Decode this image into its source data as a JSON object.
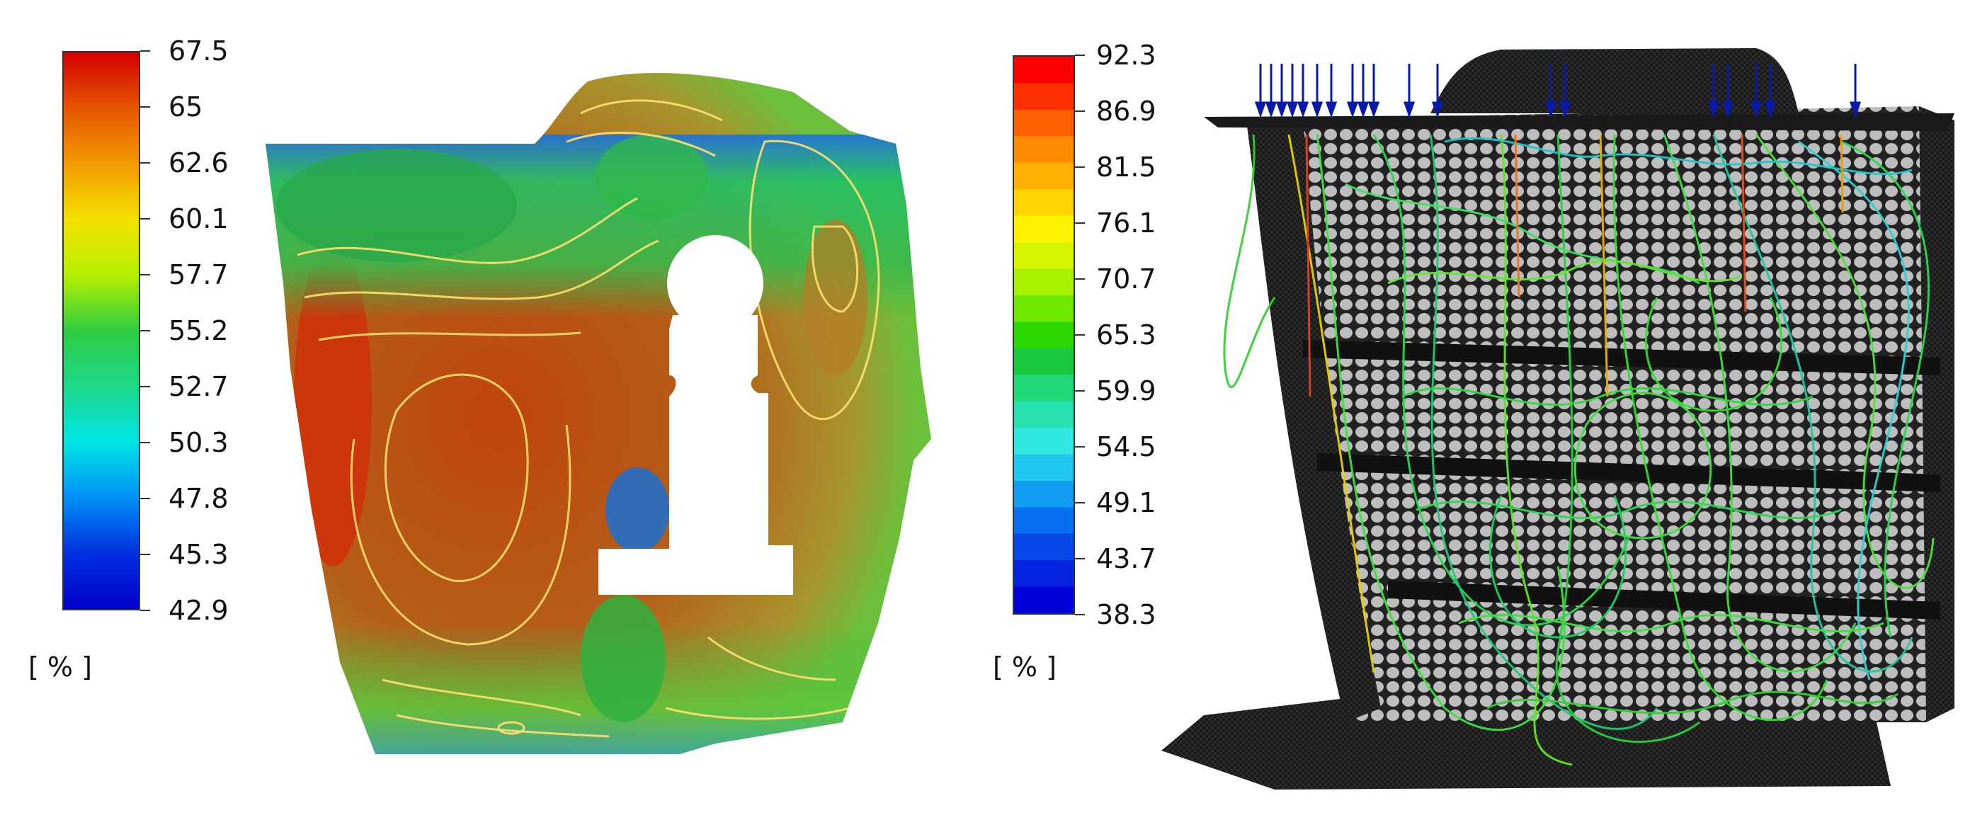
{
  "left_panel": {
    "colorbar": {
      "ticks": [
        "67.5",
        "65",
        "62.6",
        "60.1",
        "57.7",
        "55.2",
        "52.7",
        "50.3",
        "47.8",
        "45.3",
        "42.9"
      ],
      "unit": "[ % ]",
      "gradient_colors": [
        "#d40000",
        "#e65500",
        "#f29a00",
        "#f5e000",
        "#b6f000",
        "#2ecc40",
        "#1ed88a",
        "#00e5e5",
        "#0090f5",
        "#0030e0",
        "#0000c8"
      ]
    },
    "contour_map": {
      "field_colors": {
        "high": "#c0450f",
        "mid": "#a6701f",
        "low": "#3fb44a",
        "edge_low": "#1e6fe0",
        "contour_line": "#ffe070"
      }
    }
  },
  "right_panel": {
    "colorbar": {
      "ticks": [
        "92.3",
        "86.9",
        "81.5",
        "76.1",
        "70.7",
        "65.3",
        "59.9",
        "54.5",
        "49.1",
        "43.7",
        "38.3"
      ],
      "unit": "[ % ]",
      "band_colors": [
        "#ff0000",
        "#ff3000",
        "#ff6000",
        "#ff8c00",
        "#ffb000",
        "#ffd400",
        "#fff200",
        "#d8f500",
        "#a8f000",
        "#6ee800",
        "#2ad800",
        "#18c83c",
        "#20d878",
        "#28e0b0",
        "#30e8e0",
        "#20c8f0",
        "#109cf0",
        "#0870f0",
        "#0848e8",
        "#0424e0",
        "#0000d8"
      ]
    },
    "model": {
      "mesh_color": "#2a2a2a",
      "cell_color": "#bdbdbd",
      "inlet_arrow_color": "#0a1aa8"
    }
  }
}
